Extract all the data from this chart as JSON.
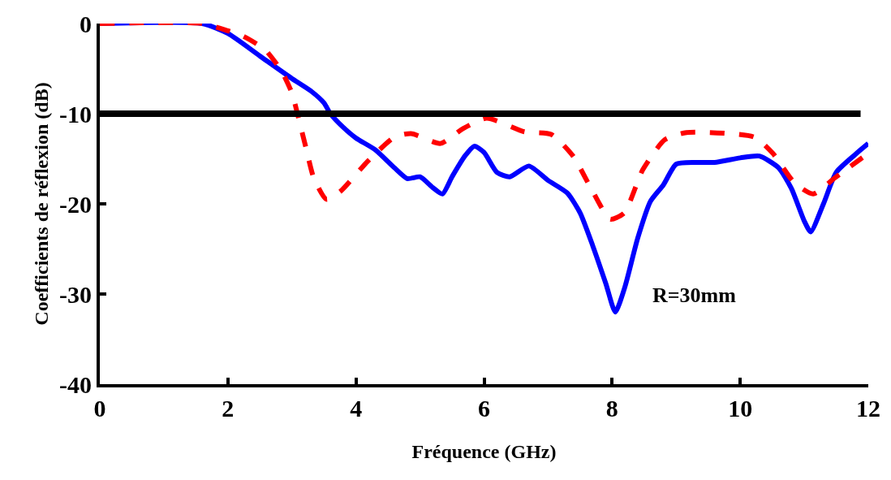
{
  "chart_data": {
    "type": "line",
    "xlabel": "Fréquence (GHz)",
    "ylabel": "Coefficients de réflexion (dB)",
    "xlim": [
      0,
      12
    ],
    "xticks": [
      0,
      2,
      4,
      6,
      8,
      10,
      12
    ],
    "ylim": [
      -40,
      0
    ],
    "yticks": [
      -40,
      -30,
      -20,
      -10,
      0
    ],
    "annotations": [
      "R=30mm"
    ],
    "ref_lines": [
      {
        "axis": "y",
        "value": -10,
        "color": "#000000",
        "line_style": "solid"
      }
    ],
    "series": [
      {
        "color": "#0000ff",
        "line_style": "solid",
        "x": [
          0,
          1.6,
          2.0,
          2.5,
          3.0,
          3.3,
          3.5,
          3.6,
          3.8,
          4.0,
          4.3,
          4.6,
          4.8,
          5.0,
          5.2,
          5.35,
          5.5,
          5.7,
          5.85,
          6.0,
          6.2,
          6.4,
          6.7,
          7.0,
          7.3,
          7.5,
          7.7,
          7.9,
          8.05,
          8.2,
          8.4,
          8.6,
          8.8,
          9.0,
          9.3,
          9.6,
          10.0,
          10.3,
          10.6,
          10.8,
          11.0,
          11.1,
          11.3,
          11.5,
          11.8,
          12.0
        ],
        "values": [
          0,
          0,
          -1.1,
          -3.6,
          -6.1,
          -7.5,
          -8.8,
          -10,
          -11.5,
          -12.7,
          -14,
          -16,
          -17.2,
          -17,
          -18.2,
          -18.9,
          -17,
          -14.7,
          -13.6,
          -14.3,
          -16.5,
          -17,
          -15.8,
          -17.4,
          -18.8,
          -21,
          -24.7,
          -28.8,
          -32,
          -29.2,
          -23.8,
          -19.7,
          -17.9,
          -15.6,
          -15.4,
          -15.4,
          -14.9,
          -14.7,
          -16,
          -18.3,
          -21.9,
          -23.1,
          -20,
          -16.5,
          -14.5,
          -13.3
        ]
      },
      {
        "color": "#ff0000",
        "line_style": "dashed",
        "x": [
          0,
          1.6,
          2.0,
          2.24,
          2.58,
          2.84,
          3.0,
          3.09,
          3.22,
          3.34,
          3.54,
          3.76,
          4.18,
          4.6,
          4.86,
          5.32,
          5.66,
          6.04,
          6.63,
          7.05,
          7.39,
          7.65,
          7.97,
          8.19,
          8.48,
          8.82,
          9.16,
          10.22,
          10.51,
          10.85,
          11.14,
          11.48,
          12.0
        ],
        "values": [
          0,
          0,
          -0.8,
          -1.4,
          -2.9,
          -5.3,
          -7.7,
          -10.1,
          -13.8,
          -17.1,
          -19.5,
          -18.6,
          -15.3,
          -12.6,
          -12.2,
          -13.3,
          -11.7,
          -10.5,
          -12,
          -12.3,
          -14.7,
          -18,
          -21.7,
          -21,
          -16.2,
          -12.9,
          -12.1,
          -12.6,
          -14.4,
          -17.7,
          -18.9,
          -17.1,
          -14.4
        ]
      }
    ]
  }
}
